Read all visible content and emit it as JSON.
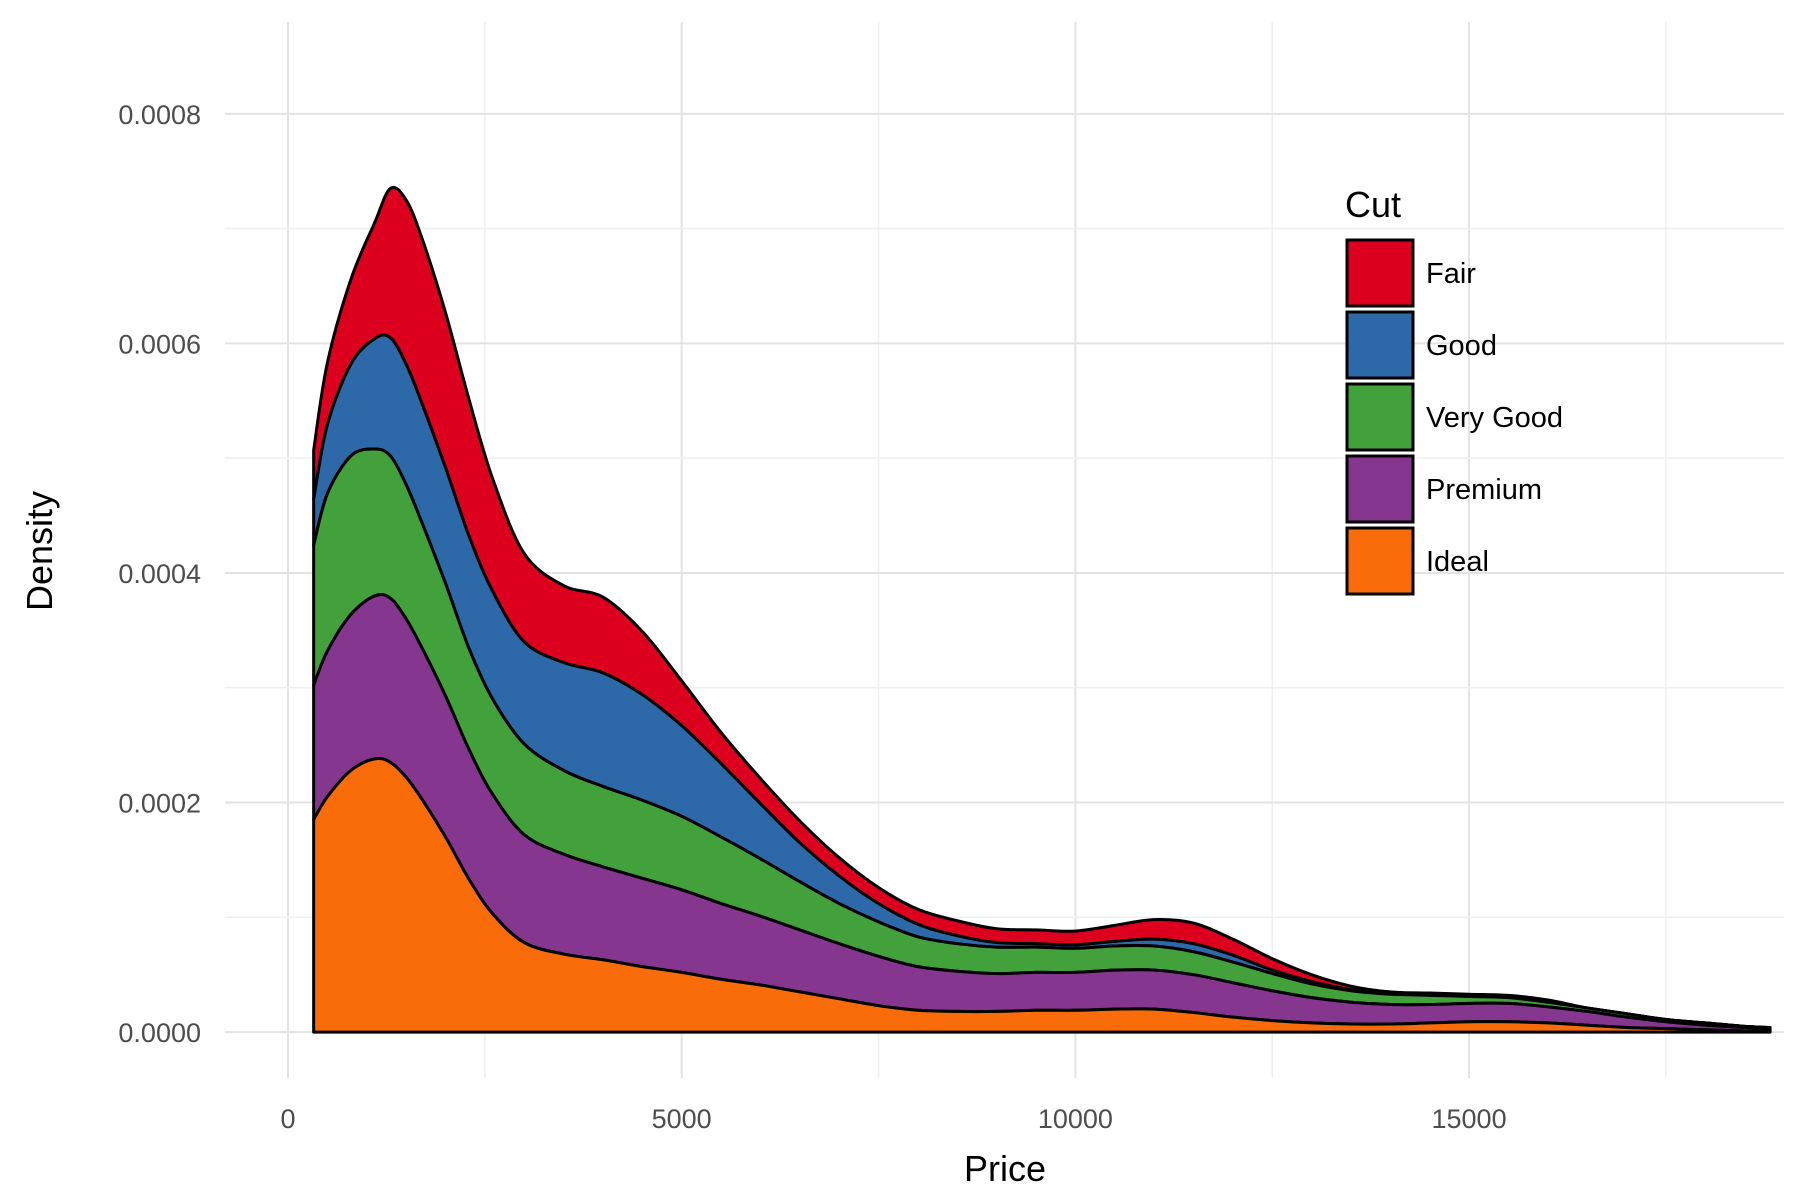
{
  "chart_data": {
    "type": "area",
    "stacking": "stacked",
    "title": "",
    "xlabel": "Price",
    "ylabel": "Density",
    "xlim": [
      -800,
      19000
    ],
    "ylim": [
      -4e-05,
      0.00088
    ],
    "x_ticks": [
      0,
      5000,
      10000,
      15000
    ],
    "x_tick_labels": [
      "0",
      "5000",
      "10000",
      "15000"
    ],
    "y_ticks": [
      0,
      0.0002,
      0.0004,
      0.0006,
      0.0008
    ],
    "y_tick_labels": [
      "0.0000",
      "0.0002",
      "0.0004",
      "0.0006",
      "0.0008"
    ],
    "grid": true,
    "legend": {
      "title": "Cut",
      "placement": "top-right-inside"
    },
    "x": [
      326,
      500,
      800,
      1100,
      1300,
      1500,
      1700,
      2000,
      2300,
      2600,
      3000,
      3500,
      4000,
      4500,
      5000,
      5500,
      6000,
      6500,
      7000,
      7500,
      8000,
      8500,
      9000,
      9500,
      10000,
      10500,
      11000,
      11500,
      12000,
      12500,
      13000,
      13500,
      14000,
      14500,
      15000,
      15500,
      16000,
      16500,
      17000,
      17500,
      18000,
      18500,
      18823
    ],
    "series": [
      {
        "name": "Fair",
        "color": "#DC001E",
        "values": [
          4.3e-05,
          5.4e-05,
          7.4e-05,
          0.000101,
          0.00013,
          0.000143,
          0.000144,
          0.000135,
          0.000119,
          9.8e-05,
          7.7e-05,
          6.7e-05,
          6.6e-05,
          5.5e-05,
          3.9e-05,
          2.7e-05,
          2.2e-05,
          1.9e-05,
          1.6e-05,
          1.4e-05,
          1.3e-05,
          1.3e-05,
          1.2e-05,
          1.2e-05,
          1.2e-05,
          1.4e-05,
          1.7e-05,
          1.8e-05,
          1.4e-05,
          1e-05,
          6e-06,
          3e-06,
          1e-06,
          1e-06,
          1e-06,
          1e-06,
          1e-06,
          0.0,
          0.0,
          0.0,
          0.0,
          0.0,
          0.0
        ]
      },
      {
        "name": "Good",
        "color": "#2D69A8",
        "values": [
          4e-05,
          6e-05,
          8e-05,
          9.6e-05,
          0.000103,
          0.000105,
          0.000104,
          0.000101,
          9.8e-05,
          9.4e-05,
          8.9e-05,
          9.4e-05,
          9.9e-05,
          9.2e-05,
          7.9e-05,
          6.4e-05,
          4.8e-05,
          3.4e-05,
          2.4e-05,
          1.6e-05,
          1.1e-05,
          7e-06,
          4e-06,
          3e-06,
          3e-06,
          4e-06,
          6e-06,
          7e-06,
          6e-06,
          3e-06,
          2e-06,
          1e-06,
          1e-06,
          1e-06,
          1e-06,
          1e-06,
          1e-06,
          0.0,
          0.0,
          0.0,
          0.0,
          0.0,
          0.0
        ]
      },
      {
        "name": "Very Good",
        "color": "#43A13C",
        "values": [
          0.000122,
          0.000137,
          0.000138,
          0.000128,
          0.000124,
          0.000117,
          0.000109,
          9.8e-05,
          8.8e-05,
          8.3e-05,
          7.9e-05,
          7.3e-05,
          7e-05,
          6.8e-05,
          6.4e-05,
          5.8e-05,
          5e-05,
          4.2e-05,
          3.5e-05,
          3e-05,
          2.6e-05,
          2.4e-05,
          2.3e-05,
          2.2e-05,
          2.1e-05,
          2.1e-05,
          2.1e-05,
          2e-05,
          1.8e-05,
          1.5e-05,
          1.2e-05,
          1e-05,
          9e-06,
          8e-06,
          6e-06,
          5e-06,
          4e-06,
          3e-06,
          3e-06,
          2e-06,
          2e-06,
          1e-06,
          1e-06
        ]
      },
      {
        "name": "Premium",
        "color": "#85368F",
        "values": [
          0.000117,
          0.000127,
          0.000136,
          0.000142,
          0.000143,
          0.000138,
          0.000132,
          0.000123,
          0.000113,
          0.000104,
          9.4e-05,
          8.7e-05,
          8.1e-05,
          7.7e-05,
          7.2e-05,
          6.6e-05,
          6e-05,
          5.4e-05,
          4.8e-05,
          4.3e-05,
          3.8e-05,
          3.5e-05,
          3.3e-05,
          3.3e-05,
          3.3e-05,
          3.4e-05,
          3.4e-05,
          3.3e-05,
          3e-05,
          2.6e-05,
          2.2e-05,
          1.9e-05,
          1.7e-05,
          1.6e-05,
          1.6e-05,
          1.6e-05,
          1.4e-05,
          1.2e-05,
          9e-06,
          6e-06,
          4e-06,
          3e-06,
          2e-06
        ]
      },
      {
        "name": "Ideal",
        "color": "#FA6B0A",
        "values": [
          0.000185,
          0.000205,
          0.000228,
          0.000238,
          0.000235,
          0.000222,
          0.000203,
          0.00017,
          0.000133,
          0.000103,
          7.8e-05,
          6.8e-05,
          6.3e-05,
          5.7e-05,
          5.2e-05,
          4.6e-05,
          4.1e-05,
          3.5e-05,
          2.9e-05,
          2.3e-05,
          1.9e-05,
          1.8e-05,
          1.8e-05,
          1.9e-05,
          1.9e-05,
          2e-05,
          2e-05,
          1.7e-05,
          1.3e-05,
          1e-05,
          8e-06,
          7e-06,
          7e-06,
          8e-06,
          9e-06,
          9e-06,
          8e-06,
          6e-06,
          4e-06,
          3e-06,
          2e-06,
          1e-06,
          1e-06
        ]
      }
    ]
  }
}
